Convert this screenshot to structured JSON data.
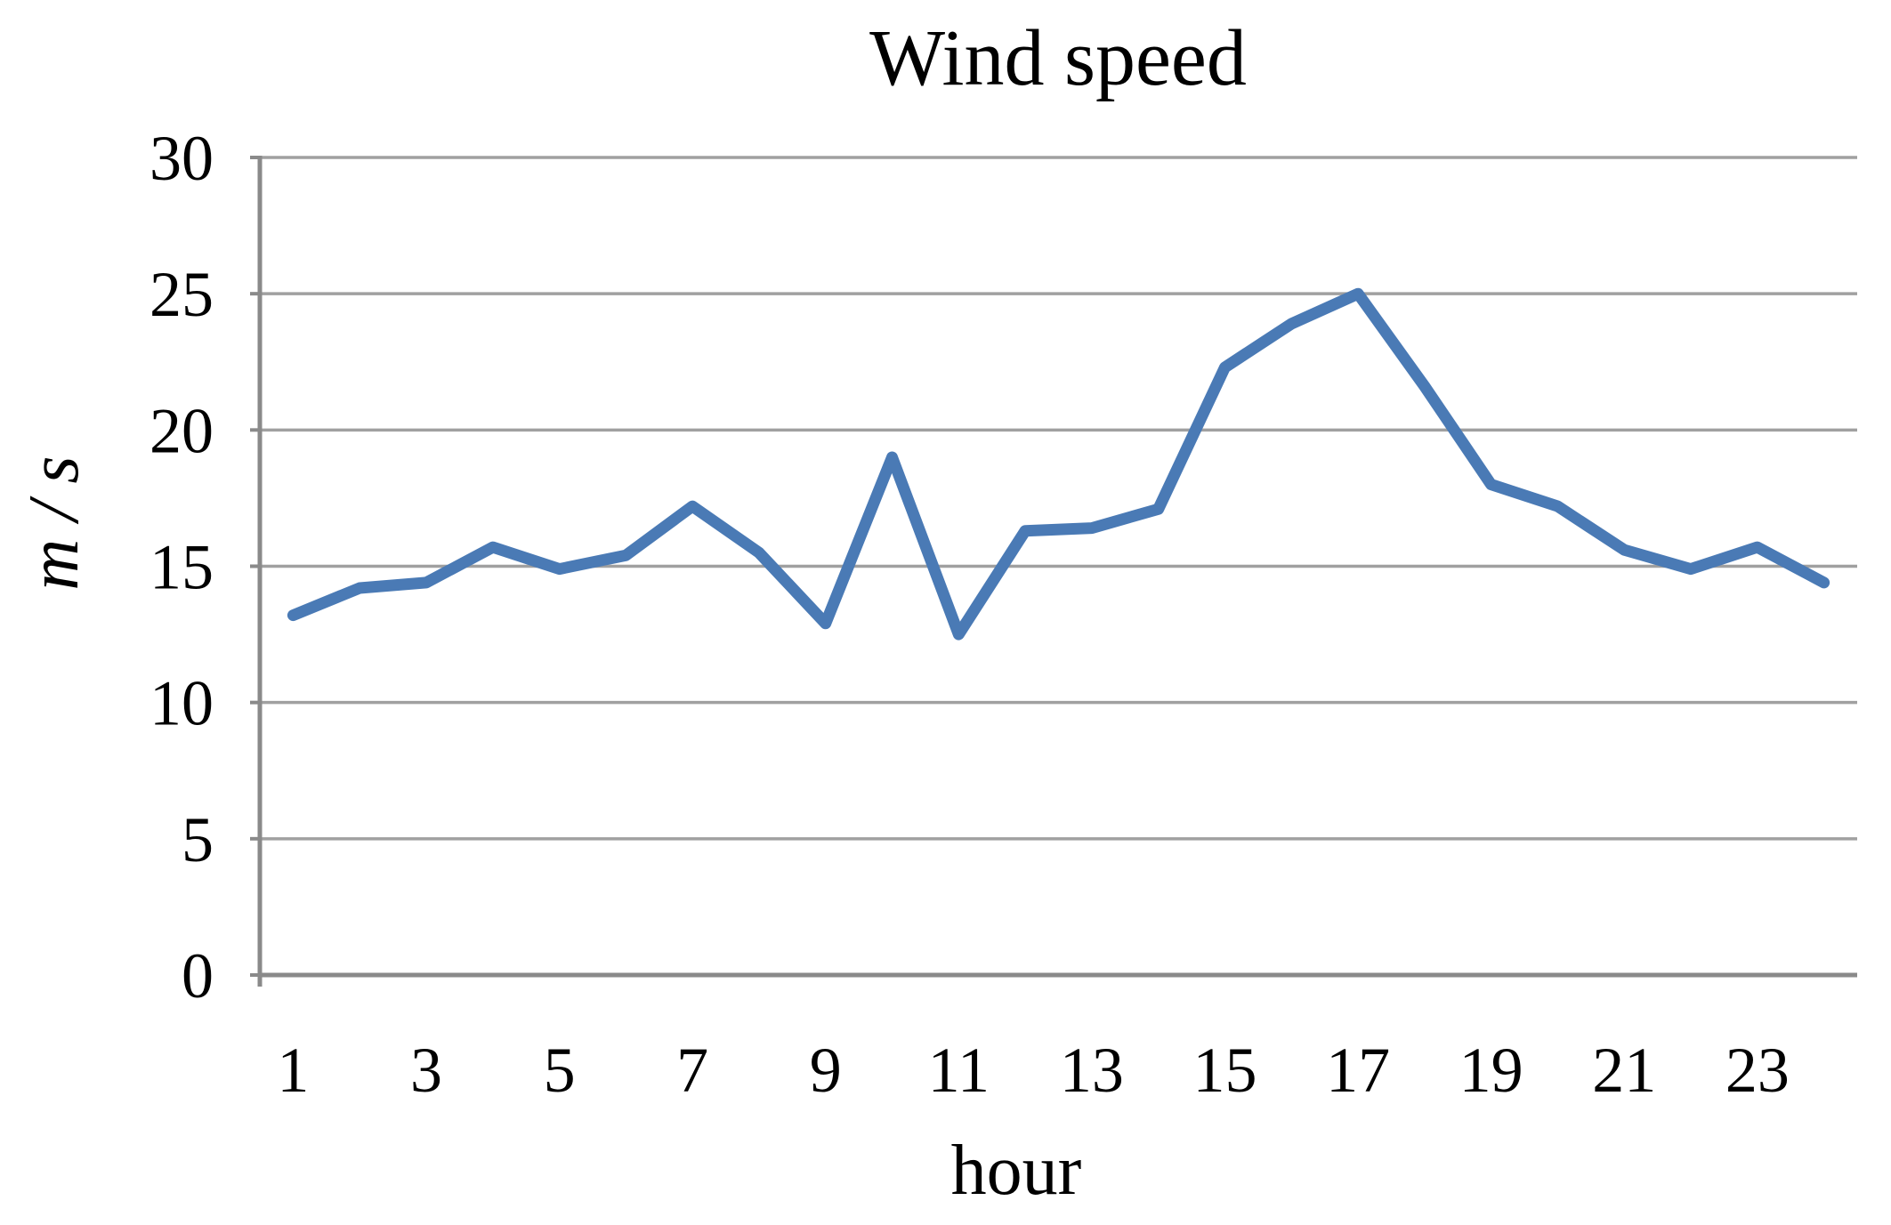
{
  "chart_data": {
    "type": "line",
    "title": "Wind speed",
    "xlabel": "hour",
    "ylabel": "m / s",
    "x": [
      1,
      2,
      3,
      4,
      5,
      6,
      7,
      8,
      9,
      10,
      11,
      12,
      13,
      14,
      15,
      16,
      17,
      18,
      19,
      20,
      21,
      22,
      23,
      24
    ],
    "values": [
      13.2,
      14.2,
      14.4,
      15.7,
      14.9,
      15.4,
      17.2,
      15.5,
      12.9,
      19.0,
      12.5,
      16.3,
      16.4,
      17.1,
      22.3,
      23.9,
      25.0,
      21.6,
      18.0,
      17.2,
      15.6,
      14.9,
      15.7,
      14.4
    ],
    "ylim": [
      0,
      30
    ],
    "ytick_interval": 5,
    "yticks": [
      0,
      5,
      10,
      15,
      20,
      25,
      30
    ],
    "xticks_shown": [
      1,
      3,
      5,
      7,
      9,
      11,
      13,
      15,
      17,
      19,
      21,
      23
    ],
    "grid": "horizontal",
    "legend": "none",
    "line_color": "#4a7ab5",
    "grid_color": "#a0a0a0",
    "axis_color": "#8a8a8a",
    "text_color": "#000000",
    "background": "#ffffff"
  }
}
